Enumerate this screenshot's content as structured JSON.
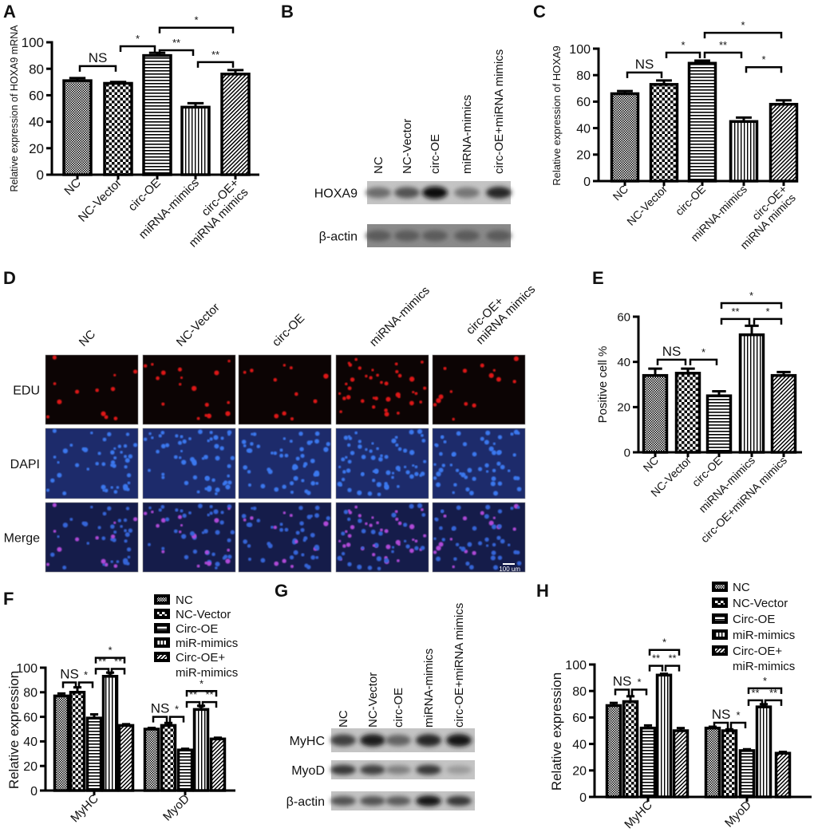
{
  "panel_labels": {
    "A": "A",
    "B": "B",
    "C": "C",
    "D": "D",
    "E": "E",
    "F": "F",
    "G": "G",
    "H": "H"
  },
  "chart_data": [
    {
      "id": "A",
      "type": "bar",
      "ylabel": "Relative expression of HOXA9 mRNA",
      "ylim": [
        0,
        100
      ],
      "yticks": [
        "0",
        "20",
        "40",
        "60",
        "80",
        "100"
      ],
      "categories": [
        "NC",
        "NC-Vector",
        "circ-OE",
        "miRNA-mimics",
        "circ-OE+\nmiRNA mimics"
      ],
      "values": [
        71,
        69,
        90,
        51,
        76
      ],
      "errors": [
        2,
        1,
        2,
        3,
        3
      ],
      "significance": [
        {
          "from": 0,
          "to": 1,
          "y": 82,
          "label": "NS"
        },
        {
          "from": 1,
          "to": 2,
          "y": 97,
          "label": "*"
        },
        {
          "from": 2,
          "to": 3,
          "y": 94,
          "label": "**"
        },
        {
          "from": 2,
          "to": 4,
          "y": 111,
          "label": "*"
        },
        {
          "from": 3,
          "to": 4,
          "y": 85,
          "label": "**"
        }
      ]
    },
    {
      "id": "C",
      "type": "bar",
      "ylabel": "Relative expression of HOXA9",
      "ylim": [
        0,
        100
      ],
      "yticks": [
        "0",
        "20",
        "40",
        "60",
        "80",
        "100"
      ],
      "categories": [
        "NC",
        "NC-Vector",
        "circ-OE",
        "miRNA-mimics",
        "circ-OE+\nmiRNA mimics"
      ],
      "values": [
        66,
        73,
        89,
        45,
        58
      ],
      "errors": [
        2,
        3,
        2,
        3,
        3
      ],
      "significance": [
        {
          "from": 0,
          "to": 1,
          "y": 82,
          "label": "NS"
        },
        {
          "from": 1,
          "to": 2,
          "y": 97,
          "label": "*"
        },
        {
          "from": 2,
          "to": 3,
          "y": 97,
          "label": "**"
        },
        {
          "from": 2,
          "to": 4,
          "y": 112,
          "label": "*"
        },
        {
          "from": 3,
          "to": 4,
          "y": 86,
          "label": "*"
        }
      ]
    },
    {
      "id": "E",
      "type": "bar",
      "ylabel": "Positive cell %",
      "ylim": [
        0,
        60
      ],
      "yticks": [
        "0",
        "20",
        "40",
        "60"
      ],
      "categories": [
        "NC",
        "NC-Vector",
        "circ-OE",
        "miRNA-mimics",
        "circ-OE+miRNA mimics"
      ],
      "values": [
        34,
        35,
        25,
        52,
        34
      ],
      "errors": [
        3,
        2,
        2,
        4,
        1.5
      ],
      "significance": [
        {
          "from": 0,
          "to": 1,
          "y": 41,
          "label": "NS"
        },
        {
          "from": 1,
          "to": 2,
          "y": 41,
          "label": "*"
        },
        {
          "from": 2,
          "to": 3,
          "y": 59,
          "label": "**"
        },
        {
          "from": 3,
          "to": 4,
          "y": 59,
          "label": "*"
        },
        {
          "from": 2,
          "to": 4,
          "y": 66,
          "label": "*"
        }
      ]
    },
    {
      "id": "F",
      "type": "grouped-bar",
      "ylabel": "Relative expression",
      "ylim": [
        0,
        100
      ],
      "yticks": [
        "0",
        "20",
        "40",
        "60",
        "80",
        "100"
      ],
      "groups": [
        "MyHC",
        "MyoD"
      ],
      "legend": [
        "NC",
        "NC-Vector",
        "Circ-OE",
        "miR-mimics",
        "Circ-OE+\nmiR-mimics"
      ],
      "legend_position": "top-right",
      "series": [
        {
          "name": "NC",
          "values": [
            77,
            50
          ],
          "errors": [
            2,
            1
          ]
        },
        {
          "name": "NC-Vector",
          "values": [
            80,
            53
          ],
          "errors": [
            4,
            2
          ]
        },
        {
          "name": "Circ-OE",
          "values": [
            59,
            33
          ],
          "errors": [
            3,
            1
          ]
        },
        {
          "name": "miR-mimics",
          "values": [
            93,
            66
          ],
          "errors": [
            3,
            3
          ]
        },
        {
          "name": "Circ-OE+miR-mimics",
          "values": [
            53,
            42
          ],
          "errors": [
            1,
            1
          ]
        }
      ],
      "significance": [
        {
          "from": [
            0,
            0
          ],
          "to": [
            0,
            1
          ],
          "y": 88,
          "label": "NS"
        },
        {
          "from": [
            0,
            1
          ],
          "to": [
            0,
            2
          ],
          "y": 88,
          "label": "*"
        },
        {
          "from": [
            0,
            2
          ],
          "to": [
            0,
            3
          ],
          "y": 99,
          "label": "**"
        },
        {
          "from": [
            0,
            3
          ],
          "to": [
            0,
            4
          ],
          "y": 99,
          "label": "**"
        },
        {
          "from": [
            0,
            2
          ],
          "to": [
            0,
            4
          ],
          "y": 108,
          "label": "*"
        },
        {
          "from": [
            1,
            0
          ],
          "to": [
            1,
            1
          ],
          "y": 60,
          "label": "NS"
        },
        {
          "from": [
            1,
            1
          ],
          "to": [
            1,
            2
          ],
          "y": 60,
          "label": "*"
        },
        {
          "from": [
            1,
            2
          ],
          "to": [
            1,
            3
          ],
          "y": 72,
          "label": "**"
        },
        {
          "from": [
            1,
            3
          ],
          "to": [
            1,
            4
          ],
          "y": 72,
          "label": "**"
        },
        {
          "from": [
            1,
            2
          ],
          "to": [
            1,
            4
          ],
          "y": 81,
          "label": "*"
        }
      ]
    },
    {
      "id": "H",
      "type": "grouped-bar",
      "ylabel": "Relative expression",
      "ylim": [
        0,
        100
      ],
      "yticks": [
        "0",
        "20",
        "40",
        "60",
        "80",
        "100"
      ],
      "groups": [
        "MyHC",
        "MyoD"
      ],
      "legend": [
        "NC",
        "NC-Vector",
        "Circ-OE",
        "miR-mimics",
        "Circ-OE+\nmiR-mimics"
      ],
      "legend_position": "top-right",
      "series": [
        {
          "name": "NC",
          "values": [
            69,
            52
          ],
          "errors": [
            2,
            1
          ]
        },
        {
          "name": "NC-Vector",
          "values": [
            72,
            50
          ],
          "errors": [
            4,
            1
          ]
        },
        {
          "name": "Circ-OE",
          "values": [
            52,
            35
          ],
          "errors": [
            2,
            1
          ]
        },
        {
          "name": "miR-mimics",
          "values": [
            92,
            68
          ],
          "errors": [
            1,
            2
          ]
        },
        {
          "name": "Circ-OE+miR-mimics",
          "values": [
            50,
            33
          ],
          "errors": [
            2,
            1
          ]
        }
      ],
      "significance": [
        {
          "from": [
            0,
            0
          ],
          "to": [
            0,
            1
          ],
          "y": 81,
          "label": "NS"
        },
        {
          "from": [
            0,
            1
          ],
          "to": [
            0,
            2
          ],
          "y": 81,
          "label": "*"
        },
        {
          "from": [
            0,
            2
          ],
          "to": [
            0,
            3
          ],
          "y": 99,
          "label": "**"
        },
        {
          "from": [
            0,
            3
          ],
          "to": [
            0,
            4
          ],
          "y": 99,
          "label": "**"
        },
        {
          "from": [
            0,
            2
          ],
          "to": [
            0,
            4
          ],
          "y": 111,
          "label": "*"
        },
        {
          "from": [
            1,
            0
          ],
          "to": [
            1,
            1
          ],
          "y": 56,
          "label": "NS"
        },
        {
          "from": [
            1,
            1
          ],
          "to": [
            1,
            2
          ],
          "y": 56,
          "label": "*"
        },
        {
          "from": [
            1,
            2
          ],
          "to": [
            1,
            3
          ],
          "y": 73,
          "label": "**"
        },
        {
          "from": [
            1,
            3
          ],
          "to": [
            1,
            4
          ],
          "y": 73,
          "label": "**"
        },
        {
          "from": [
            1,
            2
          ],
          "to": [
            1,
            4
          ],
          "y": 82,
          "label": "*"
        }
      ]
    }
  ],
  "blot_B": {
    "lanes": [
      "NC",
      "NC-Vector",
      "circ-OE",
      "miRNA-mimics",
      "circ-OE+miRNA mimics"
    ],
    "rows": [
      {
        "label": "HOXA9",
        "intensity": [
          0.45,
          0.6,
          1.0,
          0.4,
          0.85
        ]
      },
      {
        "label": "β-actin",
        "intensity": [
          0.55,
          0.55,
          0.55,
          0.55,
          0.55
        ]
      }
    ]
  },
  "blot_G": {
    "lanes": [
      "NC",
      "NC-Vector",
      "circ-OE",
      "miRNA-mimics",
      "circ-OE+miRNA mimics"
    ],
    "rows": [
      {
        "label": "MyHC",
        "intensity": [
          0.7,
          0.9,
          0.5,
          0.85,
          0.95
        ]
      },
      {
        "label": "MyoD",
        "intensity": [
          0.75,
          0.7,
          0.35,
          0.75,
          0.2
        ]
      },
      {
        "label": "β-actin",
        "intensity": [
          0.6,
          0.6,
          0.55,
          0.95,
          0.75
        ]
      }
    ]
  },
  "edu_D": {
    "columns": [
      "NC",
      "NC-Vector",
      "circ-OE",
      "miRNA-mimics",
      "circ-OE+\nmiRNA mimics"
    ],
    "rows": [
      "EDU",
      "DAPI",
      "Merge"
    ],
    "scale_bar": "100 um"
  }
}
